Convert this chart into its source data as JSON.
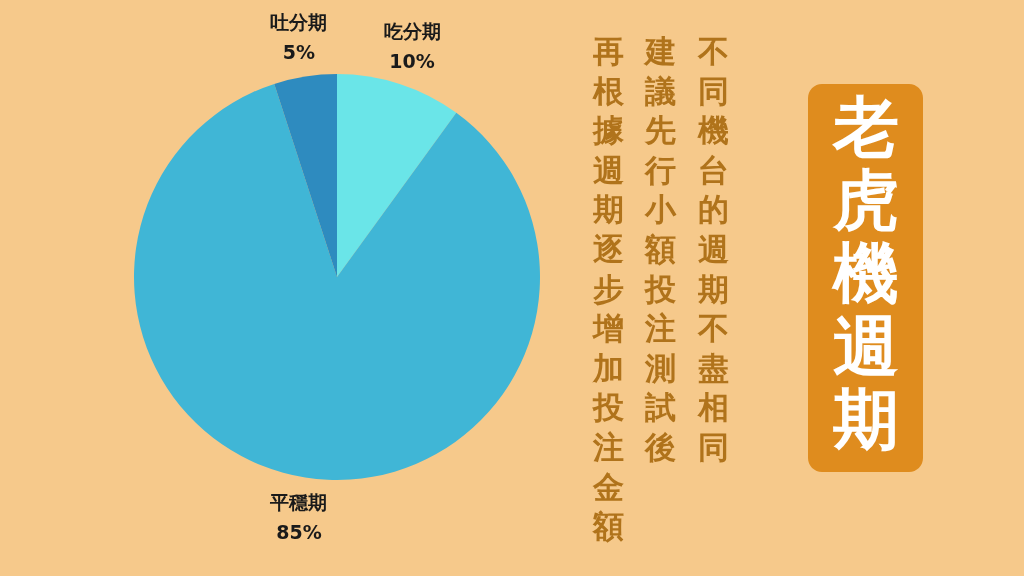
{
  "chart_data": {
    "type": "pie",
    "title": "老虎機週期",
    "categories": [
      "吃分期",
      "平穩期",
      "吐分期"
    ],
    "values": [
      10,
      85,
      5
    ],
    "value_labels": [
      "10%",
      "85%",
      "5%"
    ],
    "colors": [
      "#6ae5e8",
      "#40b6d6",
      "#2e8bbf"
    ],
    "annotations": [
      "不同機台的週期不盡相同",
      "建議先行小額投注測試後",
      "再根據週期逐步增加投注金額"
    ]
  }
}
